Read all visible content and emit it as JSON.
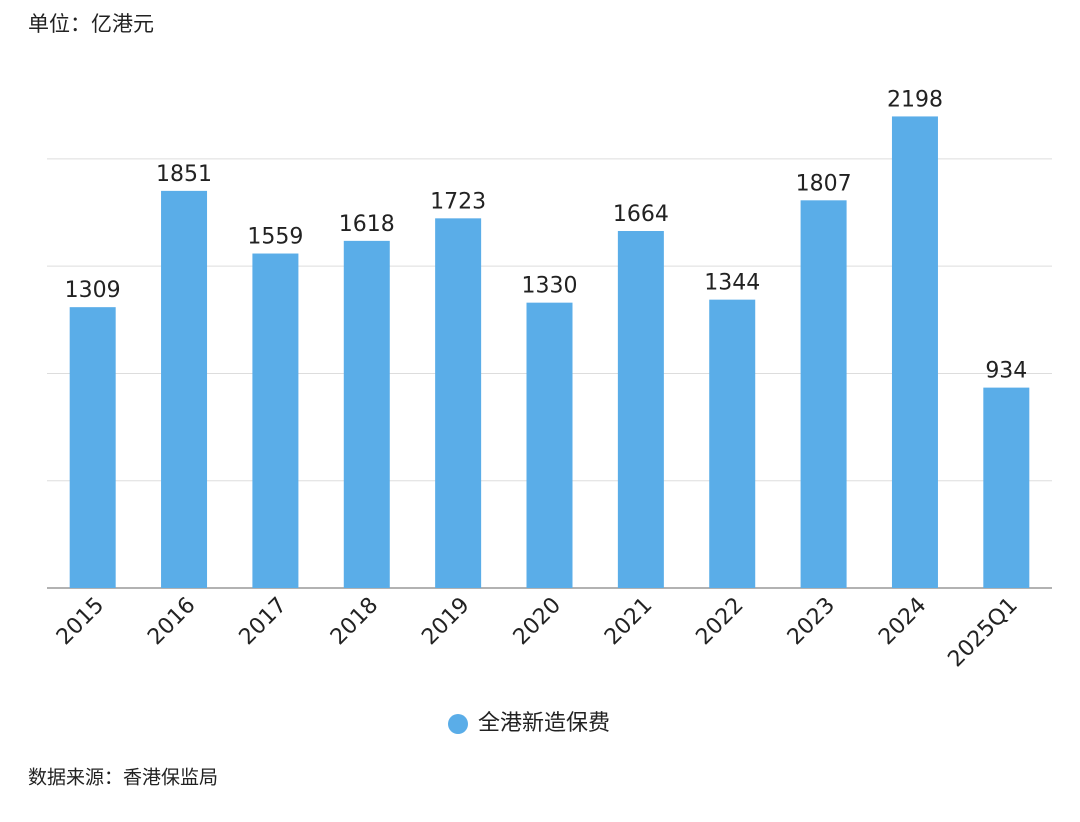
{
  "chart_data": {
    "type": "bar",
    "unit_label": "单位：亿港元",
    "source": "数据来源：香港保监局",
    "categories": [
      "2015",
      "2016",
      "2017",
      "2018",
      "2019",
      "2020",
      "2021",
      "2022",
      "2023",
      "2024",
      "2025Q1"
    ],
    "series": [
      {
        "name": "全港新造保费",
        "color": "#5aade8",
        "values": [
          1309,
          1851,
          1559,
          1618,
          1723,
          1330,
          1664,
          1344,
          1807,
          2198,
          934
        ]
      }
    ],
    "ylim": [
      0,
      2200
    ],
    "yticks": [
      0,
      500,
      1000,
      1500,
      2000
    ],
    "grid": true
  }
}
